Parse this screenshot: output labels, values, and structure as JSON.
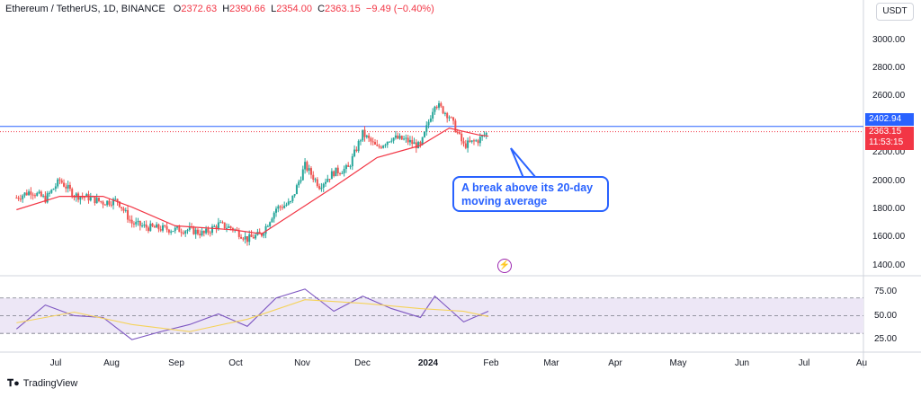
{
  "header": {
    "symbol": "Ethereum / TetherUS, 1D, BINANCE",
    "o_label": "O",
    "o": "2372.63",
    "h_label": "H",
    "h": "2390.66",
    "l_label": "L",
    "l": "2354.00",
    "c_label": "C",
    "c": "2363.15",
    "change": "−9.49 (−0.40%)"
  },
  "currency_button": "USDT",
  "price_tags": {
    "line_price": "2402.94",
    "last_price": "2363.15",
    "countdown": "11:53:15"
  },
  "callout": {
    "line1": "A break above its 20-day",
    "line2": "moving average"
  },
  "logo": {
    "icon": "tradingview-logo-icon",
    "text": "TradingView"
  },
  "alert_icon": "lightning-bolt-icon",
  "colors": {
    "up": "#26a69a",
    "down": "#ef5350",
    "ma": "#f23645",
    "rsi": "#7e57c2",
    "rsi_ma": "#f5d35b",
    "rsi_band": "#ede7f6",
    "line": "#2962ff",
    "last_price": "#f23645"
  },
  "chart_data": [
    {
      "type": "candlestick",
      "title": "Ethereum / TetherUS, 1D, BINANCE",
      "ylim": [
        1300,
        3200
      ],
      "y_ticks": [
        1400,
        1600,
        1800,
        2000,
        2200,
        2400,
        2600,
        2800,
        3000
      ],
      "y_tick_labels": [
        "1400.00",
        "1600.00",
        "1800.00",
        "2000.00",
        "2200.00",
        "2400.00",
        "2600.00",
        "2800.00",
        "3000.00"
      ],
      "x_ticks": [
        "Jul",
        "Aug",
        "Sep",
        "Oct",
        "Nov",
        "Dec",
        "2024",
        "Feb",
        "Mar",
        "Apr",
        "May",
        "Jun",
        "Jul",
        "Au"
      ],
      "horizontal_line": 2402.94,
      "last_price": 2363.15,
      "price_series": [
        {
          "date": "2023-06-23",
          "close": 1870
        },
        {
          "date": "2023-06-30",
          "close": 1920
        },
        {
          "date": "2023-07-07",
          "close": 1860
        },
        {
          "date": "2023-07-14",
          "close": 2000
        },
        {
          "date": "2023-07-21",
          "close": 1890
        },
        {
          "date": "2023-07-28",
          "close": 1870
        },
        {
          "date": "2023-08-04",
          "close": 1835
        },
        {
          "date": "2023-08-11",
          "close": 1850
        },
        {
          "date": "2023-08-18",
          "close": 1680
        },
        {
          "date": "2023-08-25",
          "close": 1650
        },
        {
          "date": "2023-09-01",
          "close": 1640
        },
        {
          "date": "2023-09-08",
          "close": 1630
        },
        {
          "date": "2023-09-15",
          "close": 1630
        },
        {
          "date": "2023-09-22",
          "close": 1600
        },
        {
          "date": "2023-09-29",
          "close": 1670
        },
        {
          "date": "2023-10-06",
          "close": 1640
        },
        {
          "date": "2023-10-13",
          "close": 1560
        },
        {
          "date": "2023-10-20",
          "close": 1600
        },
        {
          "date": "2023-10-27",
          "close": 1790
        },
        {
          "date": "2023-11-03",
          "close": 1830
        },
        {
          "date": "2023-11-10",
          "close": 2110
        },
        {
          "date": "2023-11-17",
          "close": 1960
        },
        {
          "date": "2023-11-24",
          "close": 2060
        },
        {
          "date": "2023-12-01",
          "close": 2090
        },
        {
          "date": "2023-12-08",
          "close": 2350
        },
        {
          "date": "2023-12-15",
          "close": 2240
        },
        {
          "date": "2023-12-22",
          "close": 2320
        },
        {
          "date": "2023-12-29",
          "close": 2300
        },
        {
          "date": "2024-01-05",
          "close": 2250
        },
        {
          "date": "2024-01-12",
          "close": 2580
        },
        {
          "date": "2024-01-19",
          "close": 2480
        },
        {
          "date": "2024-01-26",
          "close": 2260
        },
        {
          "date": "2024-02-02",
          "close": 2300
        },
        {
          "date": "2024-02-07",
          "close": 2363
        }
      ],
      "ma20_series": [
        {
          "date": "2023-06-23",
          "value": 1780
        },
        {
          "date": "2023-07-14",
          "value": 1880
        },
        {
          "date": "2023-08-04",
          "value": 1880
        },
        {
          "date": "2023-08-18",
          "value": 1800
        },
        {
          "date": "2023-09-08",
          "value": 1660
        },
        {
          "date": "2023-10-06",
          "value": 1630
        },
        {
          "date": "2023-10-20",
          "value": 1600
        },
        {
          "date": "2023-11-03",
          "value": 1740
        },
        {
          "date": "2023-11-24",
          "value": 1950
        },
        {
          "date": "2023-12-15",
          "value": 2170
        },
        {
          "date": "2024-01-05",
          "value": 2260
        },
        {
          "date": "2024-01-19",
          "value": 2390
        },
        {
          "date": "2024-02-02",
          "value": 2340
        },
        {
          "date": "2024-02-07",
          "value": 2330
        }
      ]
    },
    {
      "type": "line",
      "title": "RSI",
      "ylim": [
        15,
        90
      ],
      "y_ticks": [
        25,
        50,
        75
      ],
      "y_tick_labels": [
        "25.00",
        "50.00",
        "75.00"
      ],
      "band": [
        30,
        70
      ],
      "series": [
        {
          "points": [
            {
              "date": "2023-06-23",
              "value": 35
            },
            {
              "date": "2023-07-07",
              "value": 62
            },
            {
              "date": "2023-07-21",
              "value": 50
            },
            {
              "date": "2023-08-04",
              "value": 48
            },
            {
              "date": "2023-08-18",
              "value": 23
            },
            {
              "date": "2023-09-01",
              "value": 32
            },
            {
              "date": "2023-09-15",
              "value": 40
            },
            {
              "date": "2023-09-29",
              "value": 52
            },
            {
              "date": "2023-10-13",
              "value": 38
            },
            {
              "date": "2023-10-27",
              "value": 70
            },
            {
              "date": "2023-11-10",
              "value": 80
            },
            {
              "date": "2023-11-24",
              "value": 55
            },
            {
              "date": "2023-12-08",
              "value": 72
            },
            {
              "date": "2023-12-22",
              "value": 58
            },
            {
              "date": "2024-01-05",
              "value": 48
            },
            {
              "date": "2024-01-12",
              "value": 72
            },
            {
              "date": "2024-01-26",
              "value": 43
            },
            {
              "date": "2024-02-07",
              "value": 55
            }
          ]
        },
        {
          "points": [
            {
              "date": "2023-06-23",
              "value": 42
            },
            {
              "date": "2023-07-21",
              "value": 54
            },
            {
              "date": "2023-08-18",
              "value": 40
            },
            {
              "date": "2023-09-15",
              "value": 32
            },
            {
              "date": "2023-10-13",
              "value": 46
            },
            {
              "date": "2023-11-10",
              "value": 68
            },
            {
              "date": "2023-12-08",
              "value": 64
            },
            {
              "date": "2024-01-05",
              "value": 58
            },
            {
              "date": "2024-01-26",
              "value": 55
            },
            {
              "date": "2024-02-07",
              "value": 49
            }
          ]
        }
      ]
    }
  ]
}
